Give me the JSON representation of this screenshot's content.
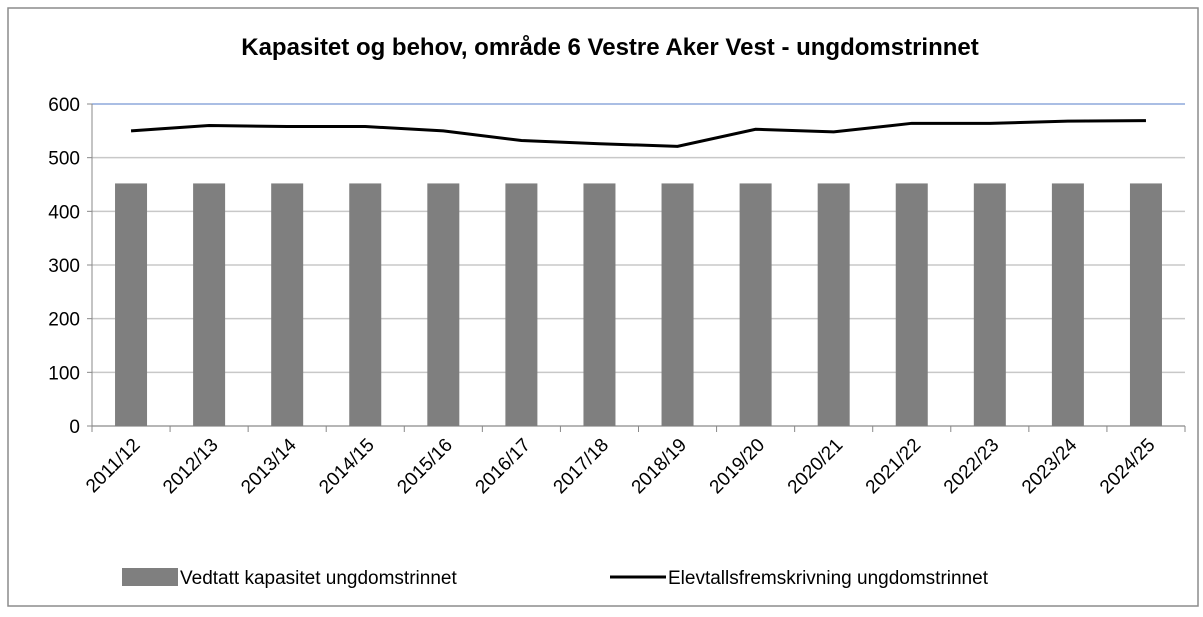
{
  "chart_data": {
    "type": "bar",
    "title": "Kapasitet og behov, område 6 Vestre Aker Vest - ungdomstrinnet",
    "categories": [
      "2011/12",
      "2012/13",
      "2013/14",
      "2014/15",
      "2015/16",
      "2016/17",
      "2017/18",
      "2018/19",
      "2019/20",
      "2020/21",
      "2021/22",
      "2022/23",
      "2023/24",
      "2024/25"
    ],
    "series": [
      {
        "name": "Vedtatt kapasitet ungdomstrinnet",
        "type": "bar",
        "color": "#7f7f7f",
        "values": [
          452,
          452,
          452,
          452,
          452,
          452,
          452,
          452,
          452,
          452,
          452,
          452,
          452,
          452
        ]
      },
      {
        "name": "Elevtallsfremskrivning ungdomstrinnet",
        "type": "line",
        "color": "#000000",
        "values": [
          550,
          560,
          558,
          558,
          550,
          532,
          526,
          521,
          553,
          548,
          564,
          564,
          568,
          569
        ]
      }
    ],
    "ylim": [
      0,
      600
    ],
    "yticks": [
      0,
      100,
      200,
      300,
      400,
      500,
      600
    ],
    "grid": true,
    "legend": "bottom"
  }
}
